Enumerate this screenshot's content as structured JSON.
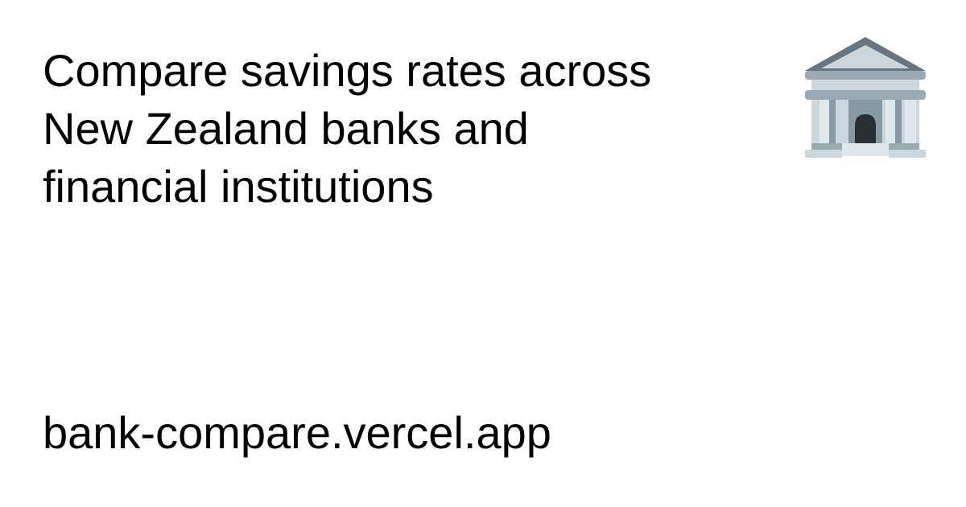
{
  "headline": {
    "line1": "Compare savings rates across",
    "line2": "New Zealand banks and",
    "line3": "financial institutions"
  },
  "site": {
    "domain": "bank-compare.vercel.app"
  },
  "icons": {
    "brand": "bank-building-icon"
  },
  "colors": {
    "background": "#ffffff",
    "text": "#000000",
    "roof_dark": "#66757f",
    "roof_light": "#ccd6dd",
    "beam": "#99aab5",
    "column": "#ccd6dd",
    "column_shadow": "#8899a6",
    "door": "#292f33"
  }
}
